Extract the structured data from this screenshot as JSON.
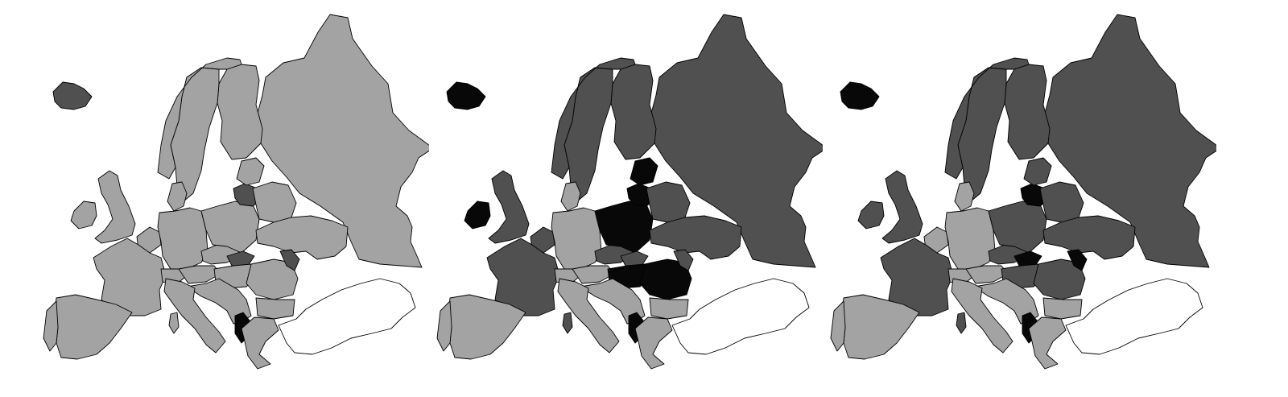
{
  "legend_colors": {
    "light": "#a3a3a3",
    "medium": "#505050",
    "dark": "#080808",
    "none": "#ffffff"
  },
  "maps": [
    {
      "id": "map-1",
      "countries": {
        "russia": "light",
        "finland": "light",
        "sweden": "light",
        "norway": "light",
        "iceland": "medium",
        "uk": "light",
        "ireland": "light",
        "france": "light",
        "spain": "light",
        "portugal": "light",
        "italy": "light",
        "germany": "light",
        "benelux": "light",
        "switzerland": "light",
        "austria": "light",
        "czechia": "light",
        "poland": "light",
        "belarus": "light",
        "ukraine": "light",
        "baltics": "light",
        "lithuania": "medium",
        "slovakia": "medium",
        "hungary": "light",
        "romania": "light",
        "moldova": "medium",
        "bulgaria": "light",
        "balkans": "light",
        "greece": "light",
        "albania": "dark",
        "denmark": "light",
        "turkey": "none",
        "sardinia": "light"
      }
    },
    {
      "id": "map-2",
      "countries": {
        "russia": "medium",
        "finland": "medium",
        "sweden": "medium",
        "norway": "medium",
        "iceland": "dark",
        "uk": "medium",
        "ireland": "dark",
        "france": "medium",
        "spain": "light",
        "portugal": "light",
        "italy": "light",
        "germany": "light",
        "benelux": "medium",
        "switzerland": "light",
        "austria": "light",
        "czechia": "medium",
        "poland": "dark",
        "belarus": "medium",
        "ukraine": "medium",
        "baltics": "dark",
        "lithuania": "dark",
        "slovakia": "medium",
        "hungary": "dark",
        "romania": "dark",
        "moldova": "medium",
        "bulgaria": "light",
        "balkans": "light",
        "greece": "light",
        "albania": "dark",
        "denmark": "light",
        "turkey": "none",
        "sardinia": "medium"
      }
    },
    {
      "id": "map-3",
      "countries": {
        "russia": "medium",
        "finland": "medium",
        "sweden": "medium",
        "norway": "medium",
        "iceland": "dark",
        "uk": "medium",
        "ireland": "medium",
        "france": "medium",
        "spain": "light",
        "portugal": "light",
        "italy": "light",
        "germany": "light",
        "benelux": "light",
        "switzerland": "light",
        "austria": "light",
        "czechia": "medium",
        "poland": "medium",
        "belarus": "medium",
        "ukraine": "medium",
        "baltics": "medium",
        "lithuania": "dark",
        "slovakia": "dark",
        "hungary": "medium",
        "romania": "medium",
        "moldova": "dark",
        "bulgaria": "light",
        "balkans": "light",
        "greece": "light",
        "albania": "dark",
        "denmark": "light",
        "turkey": "none",
        "sardinia": "medium"
      }
    }
  ]
}
